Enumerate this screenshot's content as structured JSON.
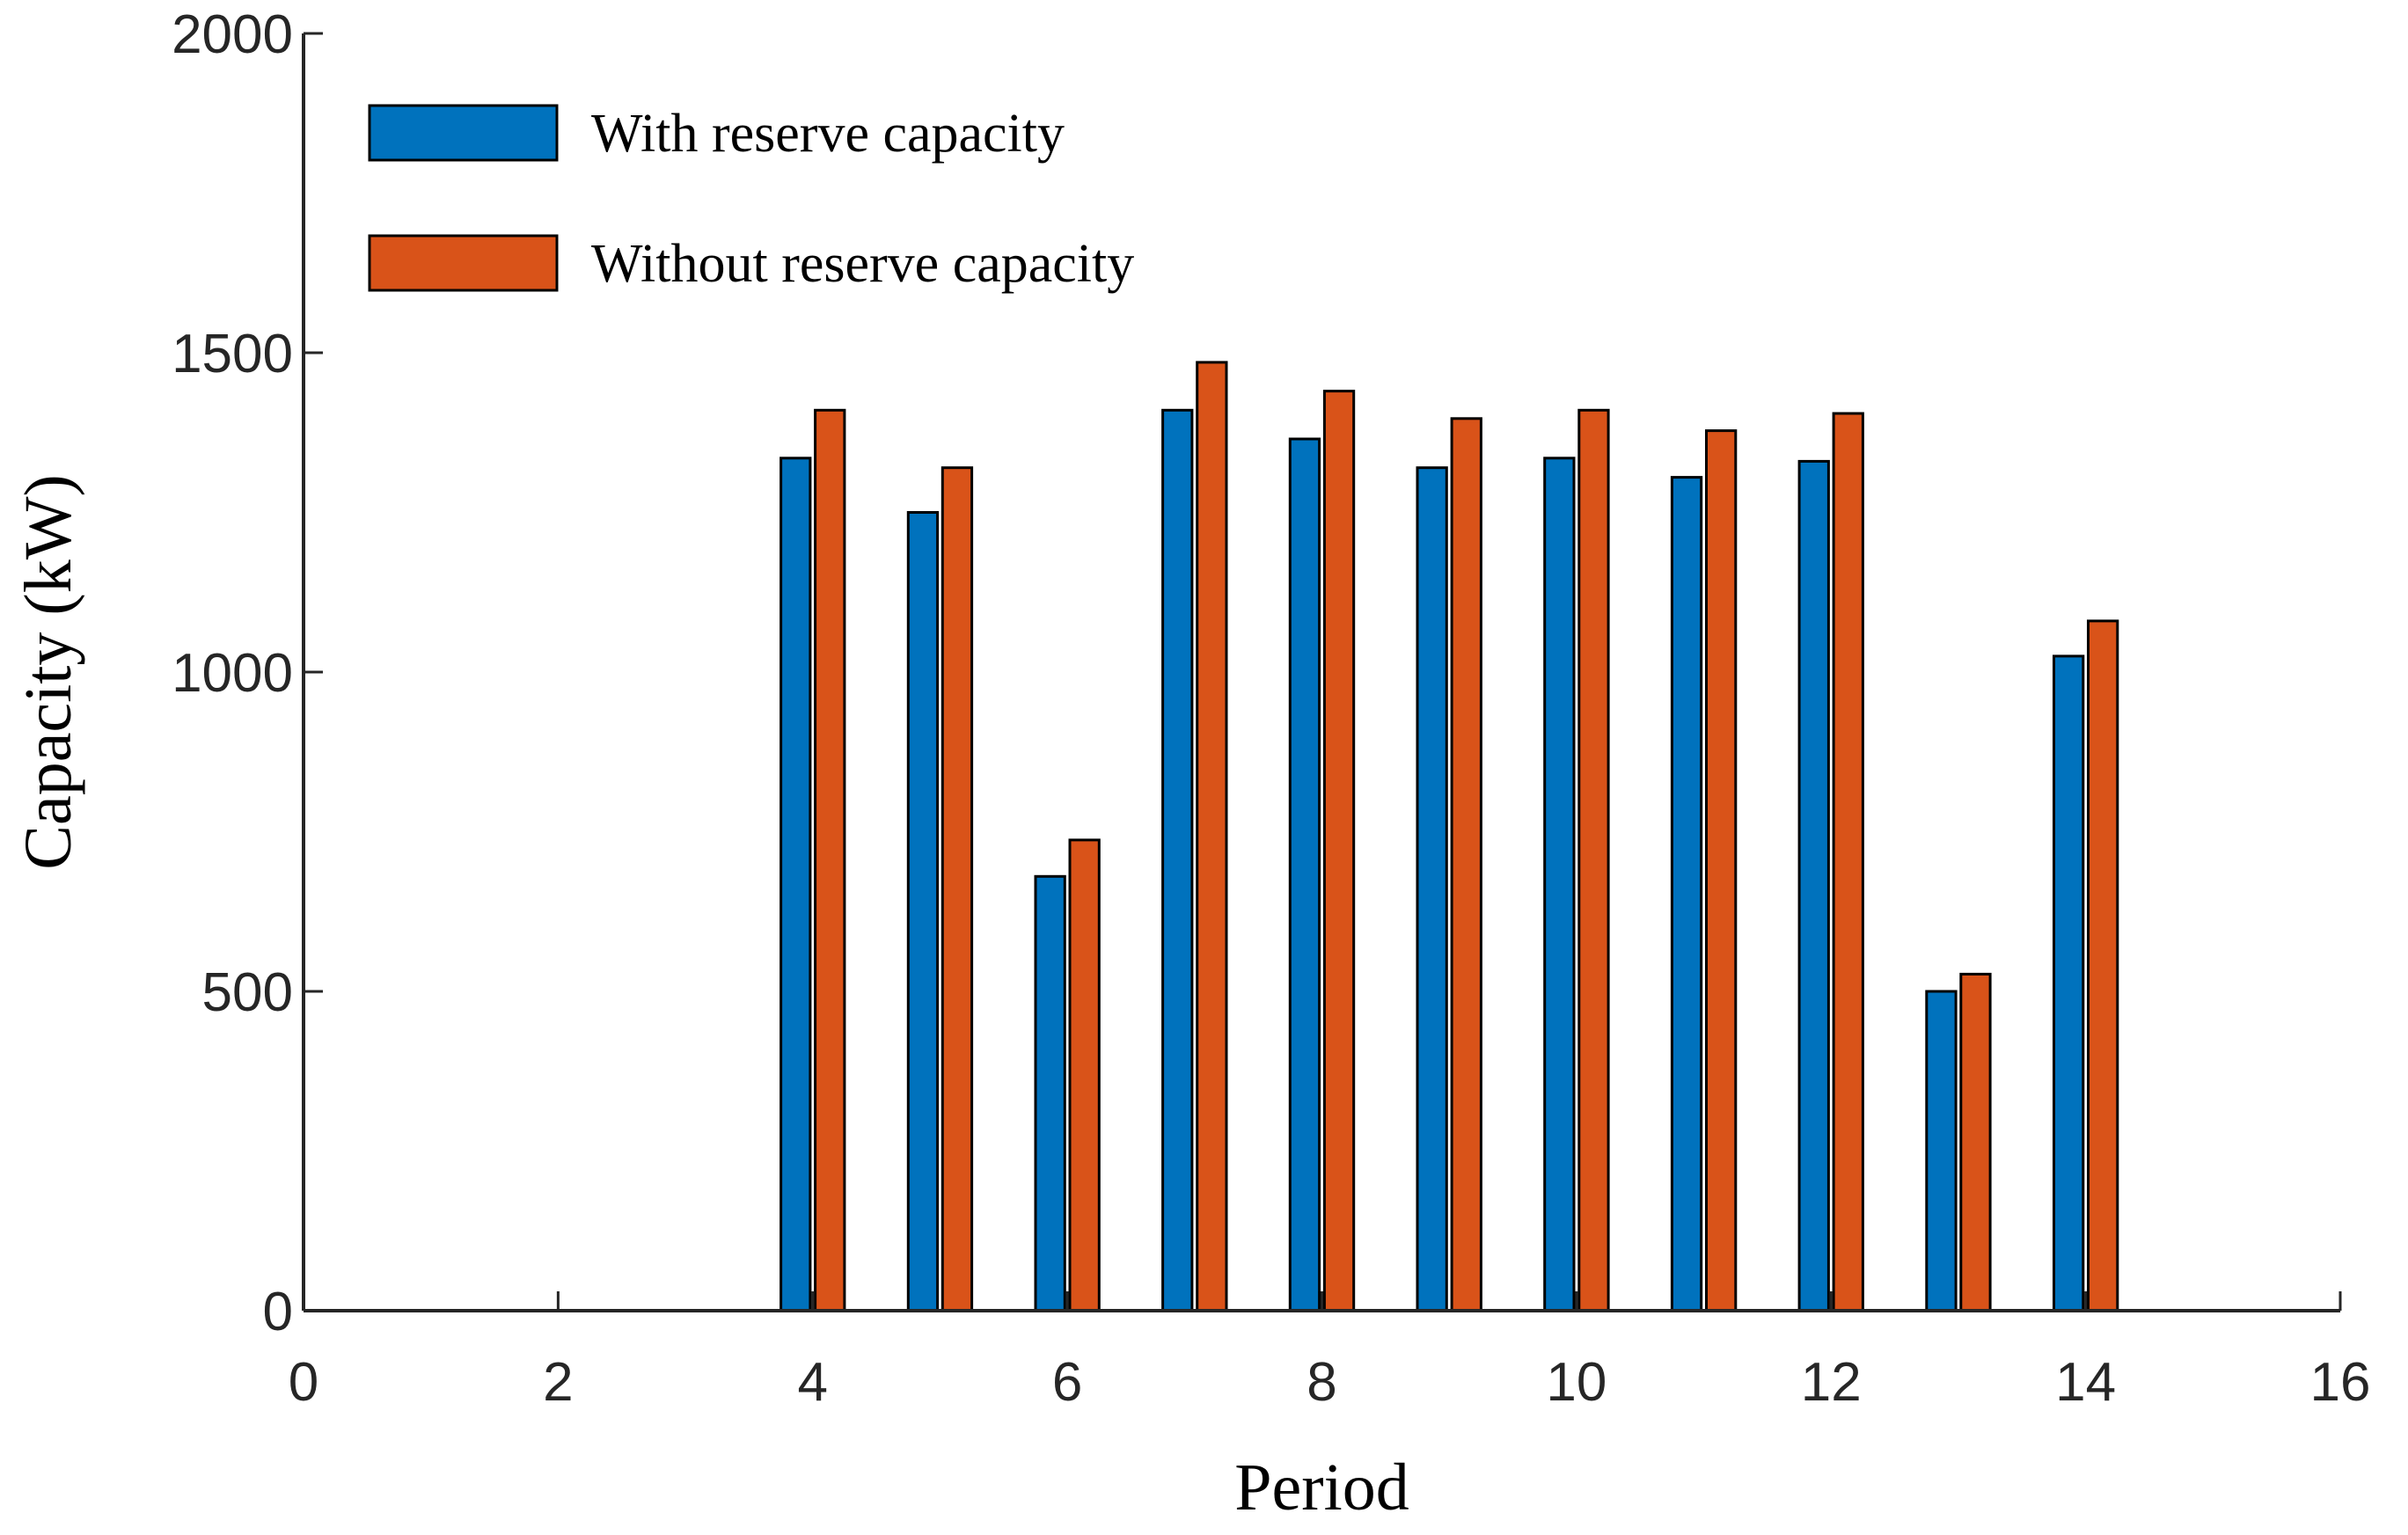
{
  "chart_data": {
    "type": "bar",
    "title": "",
    "xlabel": "Period",
    "ylabel": "Capacity (kW)",
    "xlim": [
      0,
      16
    ],
    "ylim": [
      0,
      2000
    ],
    "xticks": [
      "0",
      "2",
      "4",
      "6",
      "8",
      "10",
      "12",
      "14",
      "16"
    ],
    "yticks": [
      "0",
      "500",
      "1000",
      "1500",
      "2000"
    ],
    "legend_position": "top-left",
    "grid": false,
    "x": [
      1,
      2,
      3,
      4,
      5,
      6,
      7,
      8,
      9,
      10,
      11,
      12,
      13,
      14,
      15
    ],
    "series": [
      {
        "name": "With reserve capacity",
        "color": "#0072BD",
        "values": [
          0,
          0,
          0,
          1335,
          1250,
          680,
          1410,
          1365,
          1320,
          1335,
          1305,
          1330,
          500,
          1025,
          0
        ]
      },
      {
        "name": "Without reserve capacity",
        "color": "#D95319",
        "values": [
          0,
          0,
          0,
          1410,
          1320,
          737,
          1485,
          1440,
          1397,
          1410,
          1378,
          1405,
          527,
          1080,
          0
        ]
      }
    ]
  }
}
